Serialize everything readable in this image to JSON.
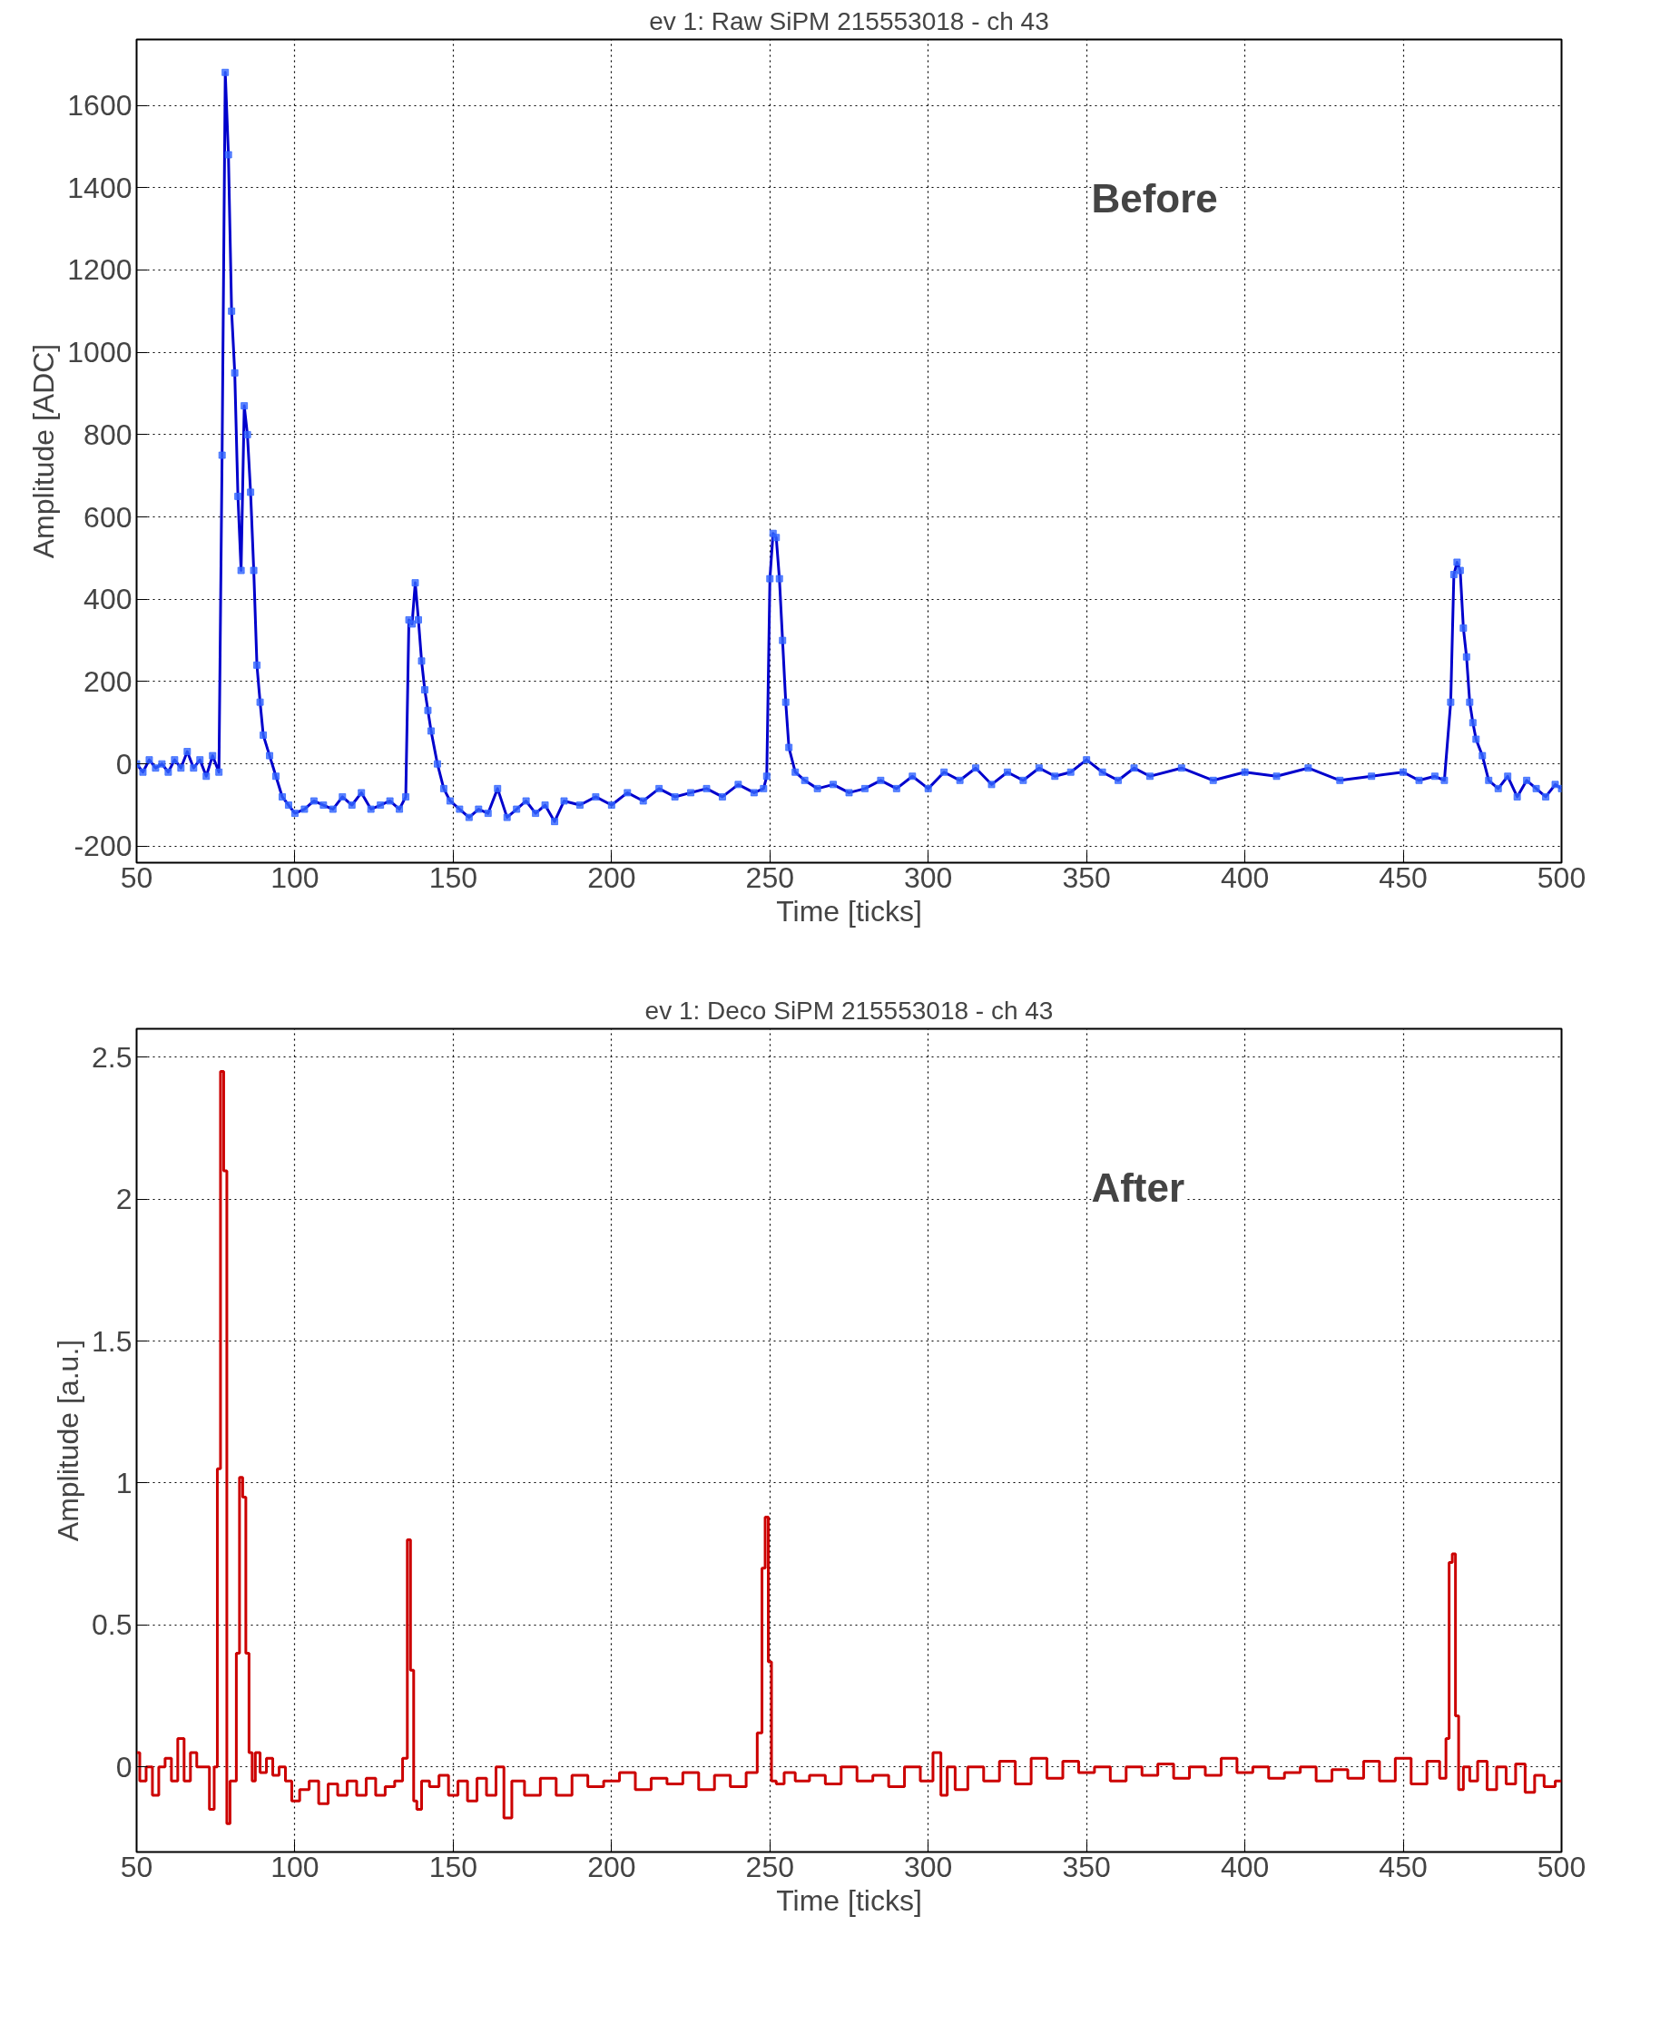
{
  "chart_data": [
    {
      "type": "line",
      "title": "ev 1: Raw SiPM 215553018 - ch 43",
      "xlabel": "Time [ticks]",
      "ylabel": "Amplitude [ADC]",
      "annotations": [
        "Before"
      ],
      "xlim": [
        50,
        500
      ],
      "xticks": [
        50,
        100,
        150,
        200,
        250,
        300,
        350,
        400,
        450,
        500
      ],
      "ylim": [
        -240,
        1760
      ],
      "yticks": [
        -200,
        0,
        200,
        400,
        600,
        800,
        1000,
        1200,
        1400,
        1600
      ],
      "grid": true,
      "marker": "square",
      "line_style": "solid",
      "series": [
        {
          "color": "#0000cc",
          "x": [
            50,
            52,
            54,
            56,
            58,
            60,
            62,
            64,
            66,
            68,
            70,
            72,
            74,
            76,
            77,
            78,
            79,
            80,
            81,
            82,
            83,
            84,
            85,
            86,
            87,
            88,
            89,
            90,
            92,
            94,
            96,
            98,
            100,
            103,
            106,
            109,
            112,
            115,
            118,
            121,
            124,
            127,
            130,
            133,
            135,
            136,
            137,
            138,
            139,
            140,
            141,
            142,
            143,
            145,
            147,
            149,
            152,
            155,
            158,
            161,
            164,
            167,
            170,
            173,
            176,
            179,
            182,
            185,
            190,
            195,
            200,
            205,
            210,
            215,
            220,
            225,
            230,
            235,
            240,
            245,
            248,
            249,
            250,
            251,
            252,
            253,
            254,
            255,
            256,
            258,
            261,
            265,
            270,
            275,
            280,
            285,
            290,
            295,
            300,
            305,
            310,
            315,
            320,
            325,
            330,
            335,
            340,
            345,
            350,
            355,
            360,
            365,
            370,
            380,
            390,
            400,
            410,
            420,
            430,
            440,
            450,
            455,
            460,
            463,
            465,
            466,
            467,
            468,
            469,
            470,
            471,
            472,
            473,
            475,
            477,
            480,
            483,
            486,
            489,
            492,
            495,
            498,
            500
          ],
          "values": [
            0,
            -20,
            10,
            -10,
            0,
            -20,
            10,
            -10,
            30,
            -10,
            10,
            -30,
            20,
            -20,
            750,
            1680,
            1480,
            1100,
            950,
            650,
            470,
            870,
            800,
            660,
            470,
            240,
            150,
            70,
            20,
            -30,
            -80,
            -100,
            -120,
            -110,
            -90,
            -100,
            -110,
            -80,
            -100,
            -70,
            -110,
            -100,
            -90,
            -110,
            -80,
            350,
            340,
            440,
            350,
            250,
            180,
            130,
            80,
            0,
            -60,
            -90,
            -110,
            -130,
            -110,
            -120,
            -60,
            -130,
            -110,
            -90,
            -120,
            -100,
            -140,
            -90,
            -100,
            -80,
            -100,
            -70,
            -90,
            -60,
            -80,
            -70,
            -60,
            -80,
            -50,
            -70,
            -60,
            -30,
            450,
            560,
            550,
            450,
            300,
            150,
            40,
            -20,
            -40,
            -60,
            -50,
            -70,
            -60,
            -40,
            -60,
            -30,
            -60,
            -20,
            -40,
            -10,
            -50,
            -20,
            -40,
            -10,
            -30,
            -20,
            10,
            -20,
            -40,
            -10,
            -30,
            -10,
            -40,
            -20,
            -30,
            -10,
            -40,
            -30,
            -20,
            -40,
            -30,
            -40,
            150,
            460,
            490,
            470,
            330,
            260,
            150,
            100,
            60,
            20,
            -40,
            -60,
            -30,
            -80,
            -40,
            -60,
            -80,
            -50,
            -60
          ]
        }
      ]
    },
    {
      "type": "step",
      "title": "ev 1: Deco SiPM 215553018 - ch 43",
      "xlabel": "Time [ticks]",
      "ylabel": "Amplitude [a.u.]",
      "annotations": [
        "After"
      ],
      "xlim": [
        50,
        500
      ],
      "xticks": [
        50,
        100,
        150,
        200,
        250,
        300,
        350,
        400,
        450,
        500
      ],
      "ylim": [
        -0.3,
        2.6
      ],
      "yticks": [
        0,
        0.5,
        1,
        1.5,
        2,
        2.5
      ],
      "grid": true,
      "line_style": "solid",
      "series": [
        {
          "color": "#cc0000",
          "x": [
            50,
            52,
            54,
            56,
            58,
            60,
            62,
            64,
            66,
            68,
            70,
            72,
            74,
            75,
            76,
            77,
            78,
            79,
            80,
            81,
            82,
            83,
            84,
            85,
            86,
            87,
            88,
            90,
            92,
            94,
            96,
            98,
            100,
            103,
            106,
            109,
            112,
            115,
            118,
            121,
            124,
            127,
            130,
            133,
            135,
            136,
            137,
            138,
            139,
            141,
            144,
            147,
            150,
            153,
            156,
            159,
            162,
            165,
            167,
            170,
            175,
            180,
            185,
            190,
            195,
            200,
            205,
            210,
            215,
            220,
            225,
            230,
            235,
            240,
            245,
            247,
            248,
            249,
            250,
            251,
            253,
            256,
            260,
            265,
            270,
            275,
            280,
            285,
            290,
            295,
            300,
            303,
            305,
            307,
            310,
            315,
            320,
            325,
            330,
            335,
            340,
            345,
            350,
            355,
            360,
            365,
            370,
            375,
            380,
            385,
            390,
            395,
            400,
            405,
            410,
            415,
            420,
            425,
            430,
            435,
            440,
            445,
            450,
            455,
            460,
            463,
            464,
            465,
            466,
            467,
            468,
            470,
            472,
            475,
            478,
            481,
            484,
            487,
            490,
            493,
            496,
            500
          ],
          "values": [
            0.05,
            -0.05,
            0.0,
            -0.1,
            0.0,
            0.03,
            -0.05,
            0.1,
            -0.05,
            0.05,
            0.0,
            0.0,
            -0.15,
            0.0,
            1.05,
            2.45,
            2.1,
            -0.2,
            -0.05,
            -0.05,
            0.4,
            1.02,
            0.95,
            0.4,
            0.05,
            -0.05,
            0.05,
            -0.02,
            0.03,
            -0.03,
            0.0,
            -0.05,
            -0.12,
            -0.08,
            -0.05,
            -0.13,
            -0.06,
            -0.1,
            -0.05,
            -0.1,
            -0.04,
            -0.1,
            -0.07,
            -0.05,
            0.03,
            0.8,
            0.34,
            -0.12,
            -0.15,
            -0.05,
            -0.07,
            -0.03,
            -0.1,
            -0.05,
            -0.12,
            -0.04,
            -0.1,
            0.0,
            -0.18,
            -0.05,
            -0.1,
            -0.04,
            -0.1,
            -0.03,
            -0.07,
            -0.05,
            -0.02,
            -0.08,
            -0.04,
            -0.06,
            -0.02,
            -0.08,
            -0.03,
            -0.07,
            -0.02,
            0.12,
            0.7,
            0.88,
            0.37,
            -0.05,
            -0.06,
            -0.02,
            -0.05,
            -0.03,
            -0.06,
            0.0,
            -0.05,
            -0.03,
            -0.07,
            0.0,
            -0.05,
            0.05,
            -0.1,
            0.0,
            -0.08,
            0.0,
            -0.05,
            0.02,
            -0.06,
            0.03,
            -0.04,
            0.02,
            -0.02,
            0.0,
            -0.05,
            0.0,
            -0.03,
            0.01,
            -0.04,
            0.0,
            -0.03,
            0.03,
            -0.02,
            0.0,
            -0.04,
            -0.02,
            0.0,
            -0.05,
            -0.01,
            -0.04,
            0.02,
            -0.05,
            0.03,
            -0.06,
            0.02,
            -0.04,
            0.1,
            0.72,
            0.75,
            0.18,
            -0.08,
            0.0,
            -0.05,
            0.02,
            -0.08,
            0.0,
            -0.06,
            0.01,
            -0.09,
            -0.03,
            -0.07,
            -0.05
          ]
        }
      ]
    }
  ]
}
